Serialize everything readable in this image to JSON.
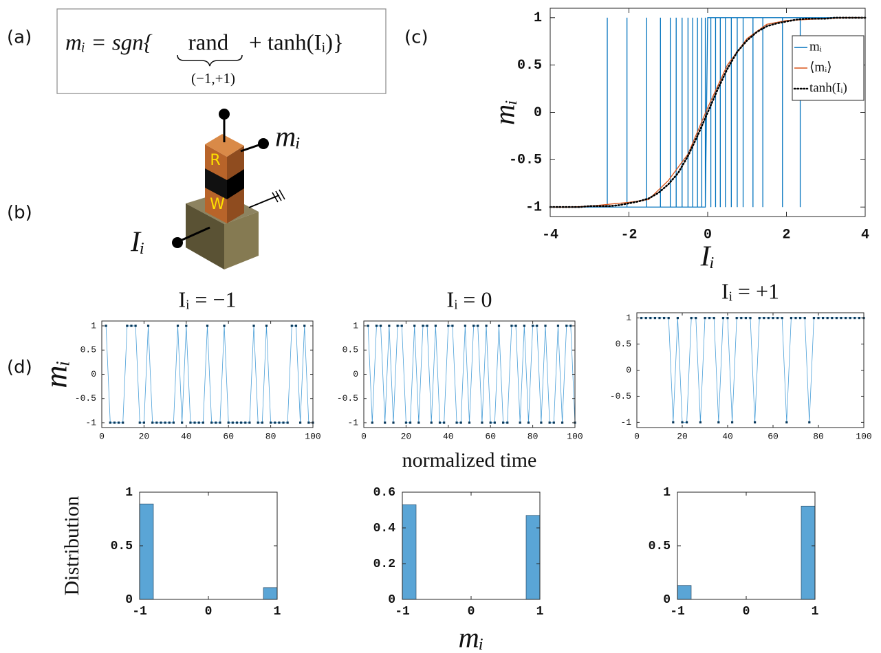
{
  "panels": [
    "(a)",
    "(b)",
    "(c)",
    "(d)"
  ],
  "equation": {
    "lhs": "mᵢ = sgn{",
    "term": "rand",
    "rhs": "+ tanh(Iᵢ)}",
    "term_label": "(−1,+1)"
  },
  "device": {
    "top_layer": "R",
    "bottom_layer": "W",
    "output": "mᵢ",
    "input": "Iᵢ"
  },
  "chart_data": [
    {
      "type": "line",
      "xlabel": "Iᵢ",
      "ylabel": "mᵢ",
      "xlim": [
        -4,
        4
      ],
      "ylim": [
        -1.1,
        1.1
      ],
      "xticks": [
        -4,
        -2,
        0,
        2,
        4
      ],
      "yticks": [
        -1,
        -0.5,
        0,
        0.5,
        1
      ],
      "legend": "upper right",
      "series": [
        {
          "name": "mᵢ",
          "color": "#0072bd",
          "line_style": "solid",
          "x": [
            -4,
            -2.55,
            -2.55,
            -2.55,
            -2.05,
            -2.05,
            -2.05,
            -1.55,
            -1.55,
            -1.55,
            -1.2,
            -1.2,
            -1.2,
            -0.95,
            -0.95,
            -0.95,
            -0.8,
            -0.8,
            -0.8,
            -0.65,
            -0.65,
            -0.65,
            -0.5,
            -0.5,
            -0.5,
            -0.38,
            -0.38,
            -0.38,
            -0.26,
            -0.26,
            -0.26,
            -0.15,
            -0.15,
            -0.15,
            -0.06,
            -0.06,
            -0.06,
            0,
            0.08,
            0.08,
            0.08,
            0.2,
            0.2,
            0.2,
            0.32,
            0.32,
            0.32,
            0.45,
            0.45,
            0.45,
            0.6,
            0.6,
            0.6,
            0.75,
            0.75,
            0.75,
            0.9,
            0.9,
            0.9,
            1.15,
            1.15,
            1.15,
            1.4,
            1.4,
            1.4,
            1.9,
            1.9,
            1.9,
            2.35,
            2.35,
            2.35,
            4
          ],
          "values": [
            -1,
            -1,
            1,
            -1,
            -1,
            1,
            -1,
            -1,
            1,
            -1,
            -1,
            1,
            -1,
            -1,
            1,
            -1,
            -1,
            1,
            -1,
            -1,
            1,
            -1,
            -1,
            1,
            -1,
            -1,
            1,
            -1,
            -1,
            1,
            -1,
            -1,
            1,
            -1,
            -1,
            1,
            -1,
            1,
            1,
            -1,
            1,
            1,
            -1,
            1,
            1,
            -1,
            1,
            1,
            -1,
            1,
            1,
            -1,
            1,
            1,
            -1,
            1,
            1,
            -1,
            1,
            1,
            -1,
            1,
            1,
            -1,
            1,
            1,
            -1,
            1,
            1,
            -1,
            1,
            1
          ]
        },
        {
          "name": "⟨mᵢ⟩",
          "color": "#d95319",
          "line_style": "solid",
          "x": [
            -4,
            -3.5,
            -3,
            -2.5,
            -2,
            -1.5,
            -1,
            -0.5,
            0,
            0.5,
            1,
            1.5,
            2,
            2.5,
            3,
            3.5,
            4
          ],
          "values": [
            -1,
            -1,
            -0.99,
            -0.97,
            -0.95,
            -0.92,
            -0.72,
            -0.44,
            0.05,
            0.5,
            0.78,
            0.93,
            0.97,
            0.98,
            0.99,
            1,
            1
          ]
        },
        {
          "name": "tanh(Iᵢ)",
          "color": "#000000",
          "line_style": "dotted",
          "x": [
            -4,
            -3.75,
            -3.5,
            -3.25,
            -3,
            -2.75,
            -2.5,
            -2.25,
            -2,
            -1.75,
            -1.5,
            -1.25,
            -1,
            -0.75,
            -0.5,
            -0.25,
            0,
            0.25,
            0.5,
            0.75,
            1,
            1.25,
            1.5,
            1.75,
            2,
            2.25,
            2.5,
            2.75,
            3,
            3.25,
            3.5,
            3.75,
            4
          ],
          "values": [
            -1,
            -1,
            -1,
            -1,
            -0.99,
            -0.99,
            -0.99,
            -0.98,
            -0.96,
            -0.94,
            -0.91,
            -0.85,
            -0.76,
            -0.64,
            -0.46,
            -0.24,
            0,
            0.24,
            0.46,
            0.64,
            0.76,
            0.85,
            0.91,
            0.94,
            0.96,
            0.98,
            0.99,
            0.99,
            0.99,
            1,
            1,
            1,
            1
          ]
        }
      ]
    },
    {
      "type": "line",
      "title": "Iᵢ = −1",
      "ylabel": "mᵢ",
      "xlim": [
        0,
        100
      ],
      "ylim": [
        -1.1,
        1.1
      ],
      "xticks": [
        0,
        20,
        40,
        60,
        80,
        100
      ],
      "yticks": [
        -1,
        -0.5,
        0,
        0.5,
        1
      ],
      "series": [
        {
          "color": "#4a9fd8",
          "marker_color": "#0b3a5c",
          "markers": true,
          "line_style": "solid",
          "x": [
            2,
            4,
            6,
            8,
            10,
            12,
            14,
            16,
            18,
            20,
            22,
            24,
            26,
            28,
            30,
            32,
            34,
            36,
            38,
            40,
            42,
            44,
            46,
            48,
            50,
            52,
            54,
            56,
            58,
            60,
            62,
            64,
            66,
            68,
            70,
            72,
            74,
            76,
            78,
            80,
            82,
            84,
            86,
            88,
            90,
            92,
            94,
            96,
            98,
            100
          ],
          "values": [
            1,
            -1,
            -1,
            -1,
            -1,
            1,
            1,
            1,
            -1,
            -1,
            1,
            -1,
            -1,
            -1,
            -1,
            -1,
            -1,
            1,
            -1,
            1,
            -1,
            -1,
            -1,
            -1,
            1,
            -1,
            -1,
            -1,
            1,
            -1,
            -1,
            -1,
            -1,
            -1,
            -1,
            1,
            -1,
            -1,
            1,
            -1,
            -1,
            -1,
            -1,
            -1,
            1,
            1,
            -1,
            1,
            -1,
            -1
          ]
        }
      ]
    },
    {
      "type": "line",
      "title": "Iᵢ = 0",
      "xlabel": "normalized time",
      "xlim": [
        0,
        100
      ],
      "ylim": [
        -1.1,
        1.1
      ],
      "xticks": [
        0,
        20,
        40,
        60,
        80,
        100
      ],
      "yticks": [
        -1,
        -0.5,
        0,
        0.5,
        1
      ],
      "series": [
        {
          "color": "#4a9fd8",
          "marker_color": "#0b3a5c",
          "markers": true,
          "line_style": "solid",
          "x": [
            2,
            4,
            6,
            8,
            10,
            12,
            14,
            16,
            18,
            20,
            22,
            24,
            26,
            28,
            30,
            32,
            34,
            36,
            38,
            40,
            42,
            44,
            46,
            48,
            50,
            52,
            54,
            56,
            58,
            60,
            62,
            64,
            66,
            68,
            70,
            72,
            74,
            76,
            78,
            80,
            82,
            84,
            86,
            88,
            90,
            92,
            94,
            96,
            98,
            100
          ],
          "values": [
            1,
            -1,
            1,
            1,
            -1,
            1,
            -1,
            1,
            1,
            -1,
            -1,
            1,
            -1,
            1,
            1,
            -1,
            1,
            -1,
            -1,
            1,
            1,
            -1,
            -1,
            1,
            -1,
            1,
            1,
            -1,
            1,
            -1,
            -1,
            1,
            -1,
            -1,
            1,
            1,
            -1,
            1,
            -1,
            1,
            1,
            -1,
            1,
            -1,
            -1,
            1,
            -1,
            1,
            1,
            -1
          ]
        }
      ]
    },
    {
      "type": "line",
      "title": "Iᵢ = +1",
      "xlim": [
        0,
        100
      ],
      "ylim": [
        -1.1,
        1.1
      ],
      "xticks": [
        0,
        20,
        40,
        60,
        80,
        100
      ],
      "yticks": [
        -1,
        -0.5,
        0,
        0.5,
        1
      ],
      "series": [
        {
          "color": "#4a9fd8",
          "marker_color": "#0b3a5c",
          "markers": true,
          "line_style": "solid",
          "x": [
            2,
            4,
            6,
            8,
            10,
            12,
            14,
            16,
            18,
            20,
            22,
            24,
            26,
            28,
            30,
            32,
            34,
            36,
            38,
            40,
            42,
            44,
            46,
            48,
            50,
            52,
            54,
            56,
            58,
            60,
            62,
            64,
            66,
            68,
            70,
            72,
            74,
            76,
            78,
            80,
            82,
            84,
            86,
            88,
            90,
            92,
            94,
            96,
            98,
            100
          ],
          "values": [
            1,
            1,
            1,
            1,
            1,
            1,
            1,
            -1,
            1,
            -1,
            -1,
            1,
            1,
            -1,
            1,
            1,
            1,
            -1,
            1,
            1,
            -1,
            1,
            1,
            1,
            1,
            -1,
            1,
            1,
            1,
            1,
            1,
            1,
            -1,
            1,
            1,
            1,
            1,
            -1,
            1,
            1,
            1,
            1,
            1,
            1,
            1,
            1,
            1,
            1,
            1,
            1
          ]
        }
      ]
    },
    {
      "type": "histogram",
      "ylabel": "Distribution",
      "color": "#5aa5d6",
      "xlim": [
        -1,
        1
      ],
      "ylim": [
        0,
        1
      ],
      "xticks": [
        -1,
        0,
        1
      ],
      "yticks": [
        0,
        0.5,
        1
      ],
      "bins": [
        -1,
        -0.8,
        -0.6,
        -0.4,
        -0.2,
        0,
        0.2,
        0.4,
        0.6,
        0.8,
        1
      ],
      "values": [
        0.89,
        0,
        0,
        0,
        0,
        0,
        0,
        0,
        0,
        0.11
      ]
    },
    {
      "type": "histogram",
      "xlabel": "mᵢ",
      "color": "#5aa5d6",
      "xlim": [
        -1,
        1
      ],
      "ylim": [
        0,
        0.6
      ],
      "xticks": [
        -1,
        0,
        1
      ],
      "yticks": [
        0,
        0.2,
        0.4,
        0.6
      ],
      "bins": [
        -1,
        -0.8,
        -0.6,
        -0.4,
        -0.2,
        0,
        0.2,
        0.4,
        0.6,
        0.8,
        1
      ],
      "values": [
        0.53,
        0,
        0,
        0,
        0,
        0,
        0,
        0,
        0,
        0.47
      ]
    },
    {
      "type": "histogram",
      "color": "#5aa5d6",
      "xlim": [
        -1,
        1
      ],
      "ylim": [
        0,
        1
      ],
      "xticks": [
        -1,
        0,
        1
      ],
      "yticks": [
        0,
        0.5,
        1
      ],
      "bins": [
        -1,
        -0.8,
        -0.6,
        -0.4,
        -0.2,
        0,
        0.2,
        0.4,
        0.6,
        0.8,
        1
      ],
      "values": [
        0.13,
        0,
        0,
        0,
        0,
        0,
        0,
        0,
        0,
        0.87
      ]
    }
  ]
}
